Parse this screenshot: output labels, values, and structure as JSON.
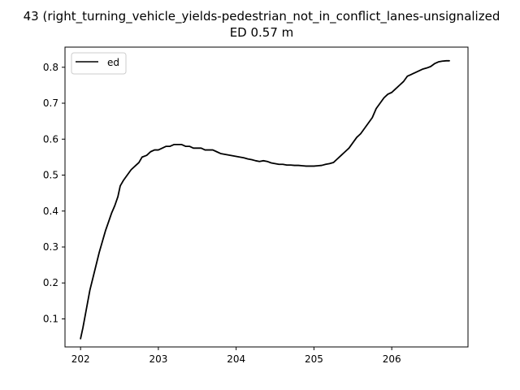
{
  "chart_data": {
    "type": "line",
    "title": "43 (right_turning_vehicle_yields-pedestrian_not_in_conflict_lanes-unsignalized",
    "subtitle": "ED 0.57 m",
    "xlabel": "",
    "ylabel": "",
    "xlim": [
      201.8,
      206.98
    ],
    "ylim": [
      0.022,
      0.856
    ],
    "x_ticks": [
      202,
      203,
      204,
      205,
      206
    ],
    "x_tick_labels": [
      "202",
      "203",
      "204",
      "205",
      "206"
    ],
    "y_ticks": [
      0.1,
      0.2,
      0.3,
      0.4,
      0.5,
      0.6,
      0.7,
      0.8
    ],
    "y_tick_labels": [
      "0.1",
      "0.2",
      "0.3",
      "0.4",
      "0.5",
      "0.6",
      "0.7",
      "0.8"
    ],
    "grid": false,
    "legend_position": "upper-left",
    "series": [
      {
        "name": "ed",
        "color": "#000000",
        "points": [
          [
            202.0,
            0.045
          ],
          [
            202.03,
            0.075
          ],
          [
            202.06,
            0.11
          ],
          [
            202.09,
            0.145
          ],
          [
            202.12,
            0.18
          ],
          [
            202.16,
            0.215
          ],
          [
            202.2,
            0.25
          ],
          [
            202.24,
            0.285
          ],
          [
            202.28,
            0.315
          ],
          [
            202.32,
            0.345
          ],
          [
            202.36,
            0.37
          ],
          [
            202.4,
            0.395
          ],
          [
            202.44,
            0.415
          ],
          [
            202.48,
            0.44
          ],
          [
            202.51,
            0.47
          ],
          [
            202.55,
            0.485
          ],
          [
            202.6,
            0.5
          ],
          [
            202.65,
            0.515
          ],
          [
            202.7,
            0.525
          ],
          [
            202.75,
            0.535
          ],
          [
            202.79,
            0.55
          ],
          [
            202.85,
            0.555
          ],
          [
            202.9,
            0.565
          ],
          [
            202.95,
            0.57
          ],
          [
            203.0,
            0.57
          ],
          [
            203.05,
            0.575
          ],
          [
            203.1,
            0.58
          ],
          [
            203.15,
            0.58
          ],
          [
            203.2,
            0.585
          ],
          [
            203.25,
            0.585
          ],
          [
            203.3,
            0.585
          ],
          [
            203.35,
            0.58
          ],
          [
            203.4,
            0.58
          ],
          [
            203.45,
            0.575
          ],
          [
            203.5,
            0.575
          ],
          [
            203.55,
            0.575
          ],
          [
            203.6,
            0.57
          ],
          [
            203.65,
            0.57
          ],
          [
            203.7,
            0.57
          ],
          [
            203.75,
            0.565
          ],
          [
            203.8,
            0.56
          ],
          [
            203.85,
            0.558
          ],
          [
            203.9,
            0.556
          ],
          [
            203.95,
            0.554
          ],
          [
            204.0,
            0.552
          ],
          [
            204.05,
            0.55
          ],
          [
            204.1,
            0.548
          ],
          [
            204.15,
            0.545
          ],
          [
            204.2,
            0.543
          ],
          [
            204.25,
            0.54
          ],
          [
            204.3,
            0.538
          ],
          [
            204.35,
            0.54
          ],
          [
            204.4,
            0.538
          ],
          [
            204.45,
            0.534
          ],
          [
            204.5,
            0.532
          ],
          [
            204.55,
            0.53
          ],
          [
            204.6,
            0.53
          ],
          [
            204.65,
            0.528
          ],
          [
            204.7,
            0.528
          ],
          [
            204.75,
            0.527
          ],
          [
            204.8,
            0.527
          ],
          [
            204.85,
            0.526
          ],
          [
            204.9,
            0.525
          ],
          [
            204.95,
            0.525
          ],
          [
            205.0,
            0.525
          ],
          [
            205.05,
            0.526
          ],
          [
            205.1,
            0.527
          ],
          [
            205.15,
            0.53
          ],
          [
            205.2,
            0.532
          ],
          [
            205.25,
            0.535
          ],
          [
            205.3,
            0.545
          ],
          [
            205.35,
            0.555
          ],
          [
            205.4,
            0.565
          ],
          [
            205.45,
            0.575
          ],
          [
            205.5,
            0.59
          ],
          [
            205.55,
            0.605
          ],
          [
            205.6,
            0.615
          ],
          [
            205.65,
            0.63
          ],
          [
            205.7,
            0.645
          ],
          [
            205.75,
            0.66
          ],
          [
            205.8,
            0.685
          ],
          [
            205.85,
            0.7
          ],
          [
            205.9,
            0.715
          ],
          [
            205.95,
            0.725
          ],
          [
            206.0,
            0.73
          ],
          [
            206.05,
            0.74
          ],
          [
            206.1,
            0.75
          ],
          [
            206.15,
            0.76
          ],
          [
            206.2,
            0.775
          ],
          [
            206.25,
            0.78
          ],
          [
            206.3,
            0.785
          ],
          [
            206.35,
            0.79
          ],
          [
            206.4,
            0.795
          ],
          [
            206.45,
            0.798
          ],
          [
            206.5,
            0.802
          ],
          [
            206.55,
            0.81
          ],
          [
            206.6,
            0.815
          ],
          [
            206.65,
            0.817
          ],
          [
            206.7,
            0.818
          ],
          [
            206.74,
            0.818
          ]
        ]
      }
    ]
  }
}
